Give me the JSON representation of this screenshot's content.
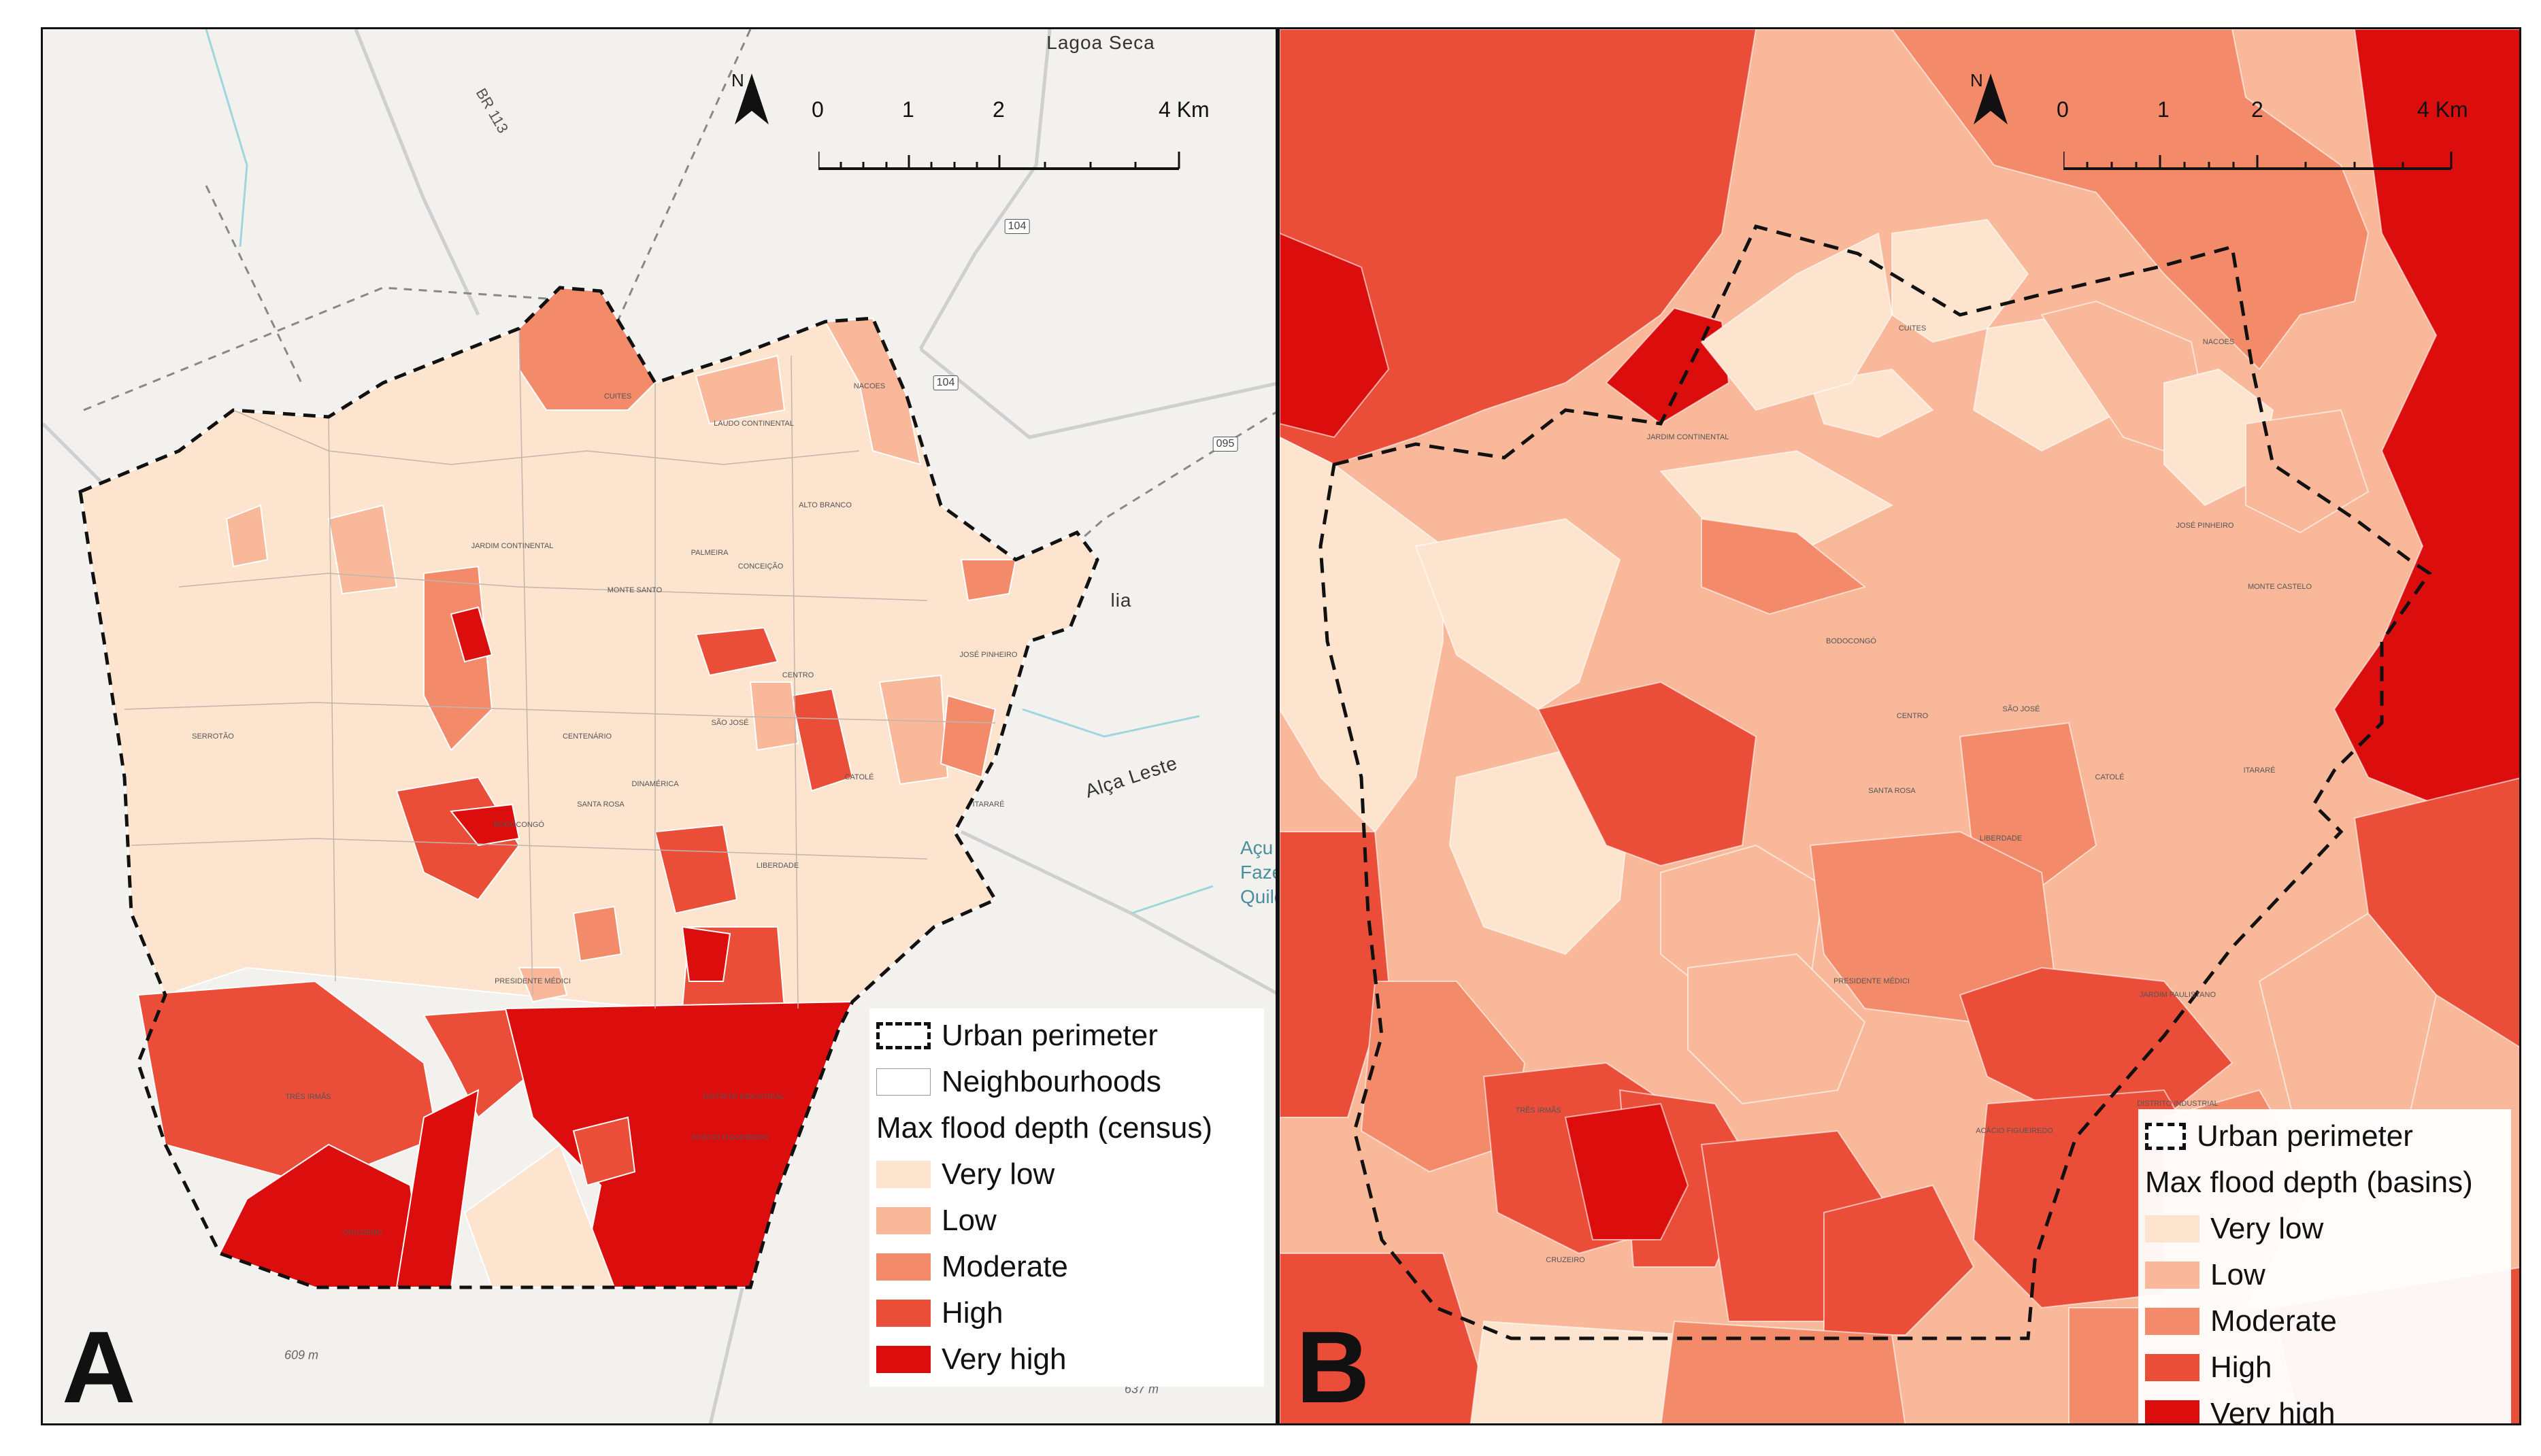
{
  "colors": {
    "very_low": "#fde4cf",
    "low": "#f8b899",
    "moderate": "#f38b6b",
    "high": "#ea4e38",
    "very_high": "#dc0d0d",
    "base_map": "#f2f1ee",
    "road": "#c9c9c9",
    "water": "#9ed6dd"
  },
  "panel_a": {
    "letter": "A",
    "north_label": "N",
    "north_icon": "north-arrow-icon",
    "scale": {
      "ticks": [
        "0",
        "1",
        "2",
        "4 Km"
      ]
    },
    "places": {
      "lagoa_seca": "Lagoa Seca",
      "alca_leste": "Alça Leste",
      "road_pb113": "BR 113",
      "road_104a": "104",
      "road_104b": "104",
      "road_095": "095",
      "elev_609": "609 m",
      "elev_637": "637 m",
      "partial_lia": "lia",
      "partial_acu": "Açu Faze Quilo"
    },
    "neighbourhoods": [
      {
        "name": "CUITES"
      },
      {
        "name": "LAUDO CONTINENTAL"
      },
      {
        "name": "NACOES"
      },
      {
        "name": "MONTE SANTO"
      },
      {
        "name": "JARDIM CONTINENTAL"
      },
      {
        "name": "PALMEIRA"
      },
      {
        "name": "CONCEIÇÃO"
      },
      {
        "name": "ALTO BRANCO"
      },
      {
        "name": "CENTENÁRIO"
      },
      {
        "name": "BODOCONGÓ"
      },
      {
        "name": "SERROTÃO"
      },
      {
        "name": "CENTRO"
      },
      {
        "name": "SÃO JOSÉ"
      },
      {
        "name": "SANTA ROSA"
      },
      {
        "name": "DINAMÉRICA"
      },
      {
        "name": "PRESIDENTE MÉDICI"
      },
      {
        "name": "CATOLÉ"
      },
      {
        "name": "LIBERDADE"
      },
      {
        "name": "TRÊS IRMÃS"
      },
      {
        "name": "ACÁCIO FIGUEIREDO"
      },
      {
        "name": "DISTRITO INDUSTRIAL"
      },
      {
        "name": "CRUZEIRO"
      },
      {
        "name": "ITARARÉ"
      },
      {
        "name": "JOSÉ PINHEIRO"
      }
    ],
    "legend": {
      "perimeter": "Urban perimeter",
      "neighbourhoods": "Neighbourhoods",
      "title": "Max flood depth (census)",
      "classes": [
        "Very low",
        "Low",
        "Moderate",
        "High",
        "Very high"
      ]
    }
  },
  "panel_b": {
    "letter": "B",
    "north_label": "N",
    "north_icon": "north-arrow-icon",
    "scale": {
      "ticks": [
        "0",
        "1",
        "2",
        "4 Km"
      ]
    },
    "basins": [
      {
        "name": "CUITES"
      },
      {
        "name": "NACOES"
      },
      {
        "name": "JARDIM CONTINENTAL"
      },
      {
        "name": "BODOCONGÓ"
      },
      {
        "name": "CENTRO"
      },
      {
        "name": "SÃO JOSÉ"
      },
      {
        "name": "SANTA ROSA"
      },
      {
        "name": "CATOLÉ"
      },
      {
        "name": "LIBERDADE"
      },
      {
        "name": "TRÊS IRMÃS"
      },
      {
        "name": "ACÁCIO FIGUEIREDO"
      },
      {
        "name": "DISTRITO INDUSTRIAL"
      },
      {
        "name": "CRUZEIRO"
      },
      {
        "name": "ITARARÉ"
      },
      {
        "name": "JOSÉ PINHEIRO"
      },
      {
        "name": "PRESIDENTE MÉDICI"
      },
      {
        "name": "JARDIM PAULISTANO"
      },
      {
        "name": "MONTE CASTELO"
      }
    ],
    "legend": {
      "perimeter": "Urban perimeter",
      "title": "Max flood depth (basins)",
      "classes": [
        "Very low",
        "Low",
        "Moderate",
        "High",
        "Very high"
      ]
    }
  }
}
